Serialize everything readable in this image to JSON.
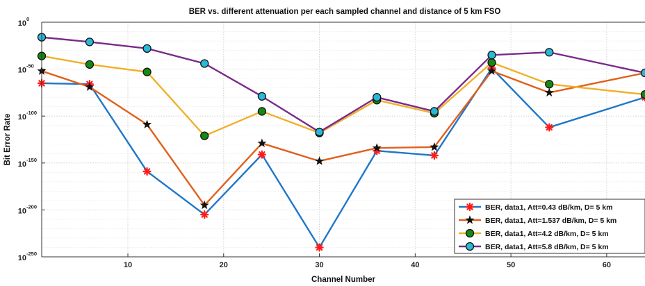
{
  "chart_data": {
    "type": "line",
    "title": "BER vs. different attenuation per each sampled channel and distance of 5 km FSO",
    "xlabel": "Channel Number",
    "ylabel": "Bit Error Rate",
    "xlim": [
      1,
      64
    ],
    "ylim_log10": [
      -250,
      0
    ],
    "y_scale": "log",
    "xticks": [
      10,
      20,
      30,
      40,
      50,
      60
    ],
    "xtick_labels": [
      "10",
      "20",
      "30",
      "40",
      "50",
      "60"
    ],
    "yticks_log10": [
      0,
      -50,
      -100,
      -150,
      -200,
      -250
    ],
    "ytick_labels": [
      {
        "base": "10",
        "exp": "0"
      },
      {
        "base": "10",
        "exp": "-50"
      },
      {
        "base": "10",
        "exp": "-100"
      },
      {
        "base": "10",
        "exp": "-150"
      },
      {
        "base": "10",
        "exp": "-200"
      },
      {
        "base": "10",
        "exp": "-250"
      }
    ],
    "grid": true,
    "legend_position": "bottom-right",
    "x": [
      1,
      6,
      12,
      18,
      24,
      30,
      36,
      42,
      48,
      54,
      64
    ],
    "series": [
      {
        "name": "BER, data1, Att=0.43 dB/km, D= 5 km",
        "color": "#1f77c8",
        "marker": "asterisk",
        "marker_color": "#ff1a1a",
        "log10_values": [
          -65,
          -66,
          -159,
          -205,
          -141,
          -240,
          -137,
          -142,
          -49,
          -112,
          -80
        ]
      },
      {
        "name": "BER, data1, Att=1.537 dB/km, D= 5 km",
        "color": "#e0601c",
        "marker": "star",
        "marker_color": "#111111",
        "log10_values": [
          -52,
          -69,
          -109,
          -195,
          -129,
          -148,
          -134,
          -133,
          -52,
          -75,
          -54
        ]
      },
      {
        "name": "BER, data1, Att=4.2 dB/km, D= 5 km",
        "color": "#f0b02a",
        "marker": "circle",
        "marker_color": "#138a13",
        "log10_values": [
          -36,
          -45,
          -53,
          -121,
          -95,
          -118,
          -83,
          -97,
          -43,
          -66,
          -77
        ]
      },
      {
        "name": "BER, data1, Att=5.8 dB/km, D= 5 km",
        "color": "#7a2a8a",
        "marker": "circle",
        "marker_color": "#2ab8d8",
        "log10_values": [
          -16,
          -21,
          -28,
          -44,
          -79,
          -117,
          -80,
          -95,
          -35,
          -32,
          -54
        ]
      }
    ]
  }
}
